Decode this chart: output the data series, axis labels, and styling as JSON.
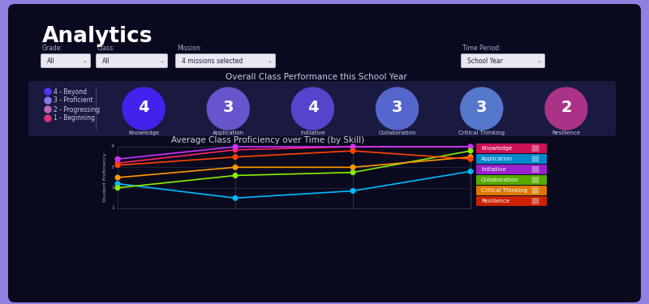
{
  "bg_outer": "#9080e0",
  "bg_dashboard": "#0a0a1e",
  "bg_card": "#1a1a40",
  "title": "Analytics",
  "filter_labels": [
    "Grade:",
    "Class:",
    "Mission:",
    "Time Period:"
  ],
  "filter_values": [
    "All",
    "All",
    "4 missions selected",
    "School Year"
  ],
  "section1_title": "Overall Class Performance this School Year",
  "section2_title": "Average Class Proficiency over Time (by Skill)",
  "legend_items": [
    {
      "label": "4 - Beyond",
      "color": "#5533ff"
    },
    {
      "label": "3 - Proficient",
      "color": "#8877ee"
    },
    {
      "label": "2 - Progressing",
      "color": "#bb66bb"
    },
    {
      "label": "1 - Beginning",
      "color": "#dd3377"
    }
  ],
  "skills": [
    {
      "name": "Knowledge",
      "score": "4",
      "color": "#4422ee"
    },
    {
      "name": "Application",
      "score": "3",
      "color": "#6655cc"
    },
    {
      "name": "Initiative",
      "score": "4",
      "color": "#5544cc"
    },
    {
      "name": "Collaboration",
      "score": "3",
      "color": "#5566cc"
    },
    {
      "name": "Critical Thinking",
      "score": "3",
      "color": "#5577cc"
    },
    {
      "name": "Resilience",
      "score": "2",
      "color": "#aa3388"
    }
  ],
  "line_series": [
    {
      "name": "Knowledge",
      "color": "#ff2266",
      "data": [
        3.2,
        3.85,
        4.0,
        4.0
      ]
    },
    {
      "name": "Application",
      "color": "#00bbff",
      "data": [
        2.2,
        1.5,
        1.85,
        2.8
      ]
    },
    {
      "name": "Initiative",
      "color": "#cc33ff",
      "data": [
        3.4,
        4.0,
        4.0,
        4.0
      ]
    },
    {
      "name": "Collaboration",
      "color": "#88ee00",
      "data": [
        2.0,
        2.6,
        2.75,
        3.8
      ]
    },
    {
      "name": "Critical Thinking",
      "color": "#ff9900",
      "data": [
        2.5,
        3.0,
        3.0,
        3.5
      ]
    },
    {
      "name": "Resilience",
      "color": "#ff4400",
      "data": [
        3.1,
        3.5,
        3.8,
        3.4
      ]
    }
  ],
  "legend_bg_colors": [
    "#cc1155",
    "#0088cc",
    "#9922cc",
    "#55aa00",
    "#dd7700",
    "#cc2200"
  ]
}
